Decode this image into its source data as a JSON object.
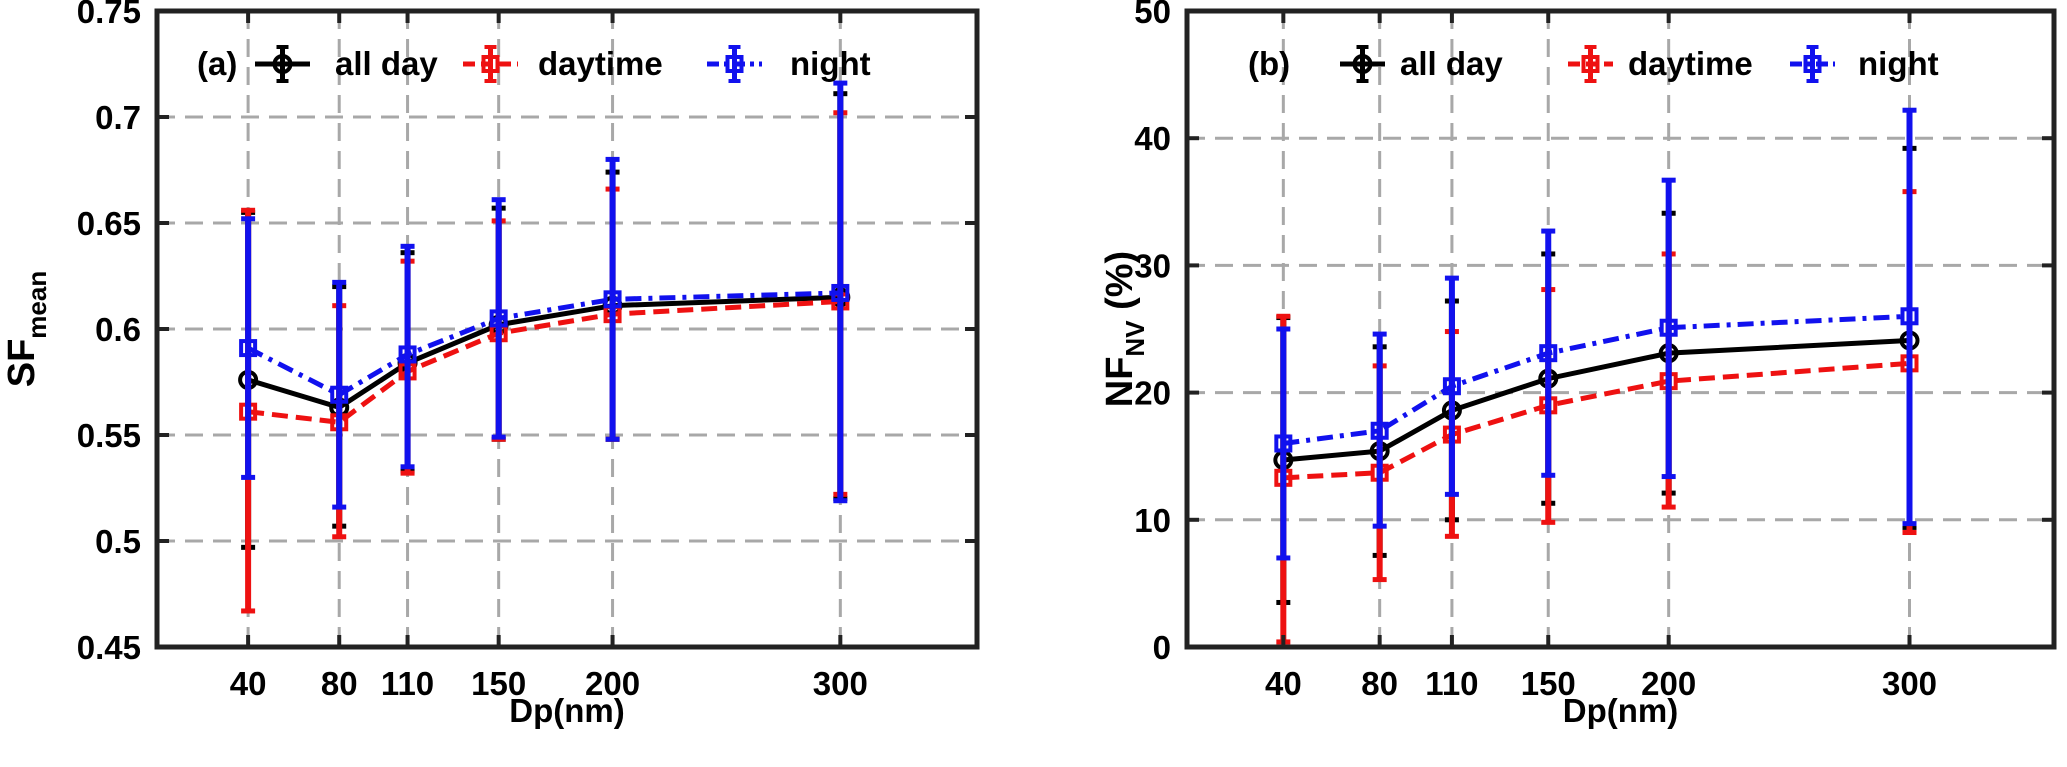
{
  "chart_data": [
    {
      "type": "line",
      "panel_label": "(a)",
      "title": "",
      "xlabel": "Dp(nm)",
      "ylabel_main": "SF",
      "ylabel_sub": "mean",
      "x_ticks": [
        40,
        80,
        110,
        150,
        200,
        300
      ],
      "x_tick_labels": [
        "40",
        "80",
        "110",
        "150",
        "200",
        "300"
      ],
      "xlim": [
        0,
        360
      ],
      "ylim": [
        0.45,
        0.75
      ],
      "y_ticks": [
        0.45,
        0.5,
        0.55,
        0.6,
        0.65,
        0.7,
        0.75
      ],
      "y_tick_labels": [
        "0.45",
        "0.5",
        "0.55",
        "0.6",
        "0.65",
        "0.7",
        "0.75"
      ],
      "grid": true,
      "legend_position": "top",
      "x": [
        40,
        80,
        110,
        150,
        200,
        300
      ],
      "series": [
        {
          "name": "all day",
          "color": "#000000",
          "dash": "solid",
          "marker": "circle",
          "values": [
            0.576,
            0.563,
            0.584,
            0.602,
            0.611,
            0.615
          ],
          "err_low": [
            0.497,
            0.507,
            0.533,
            0.548,
            0.548,
            0.52
          ],
          "err_high": [
            0.655,
            0.62,
            0.636,
            0.657,
            0.674,
            0.711
          ]
        },
        {
          "name": "daytime",
          "color": "#ee1111",
          "dash": "dash",
          "marker": "square",
          "values": [
            0.561,
            0.556,
            0.58,
            0.598,
            0.607,
            0.613
          ],
          "err_low": [
            0.467,
            0.502,
            0.532,
            0.548,
            0.548,
            0.522
          ],
          "err_high": [
            0.656,
            0.611,
            0.632,
            0.651,
            0.666,
            0.702
          ]
        },
        {
          "name": "night",
          "color": "#1111ee",
          "dash": "dashdot",
          "marker": "square",
          "values": [
            0.591,
            0.569,
            0.588,
            0.605,
            0.614,
            0.617
          ],
          "err_low": [
            0.53,
            0.516,
            0.535,
            0.549,
            0.548,
            0.519
          ],
          "err_high": [
            0.652,
            0.622,
            0.639,
            0.661,
            0.68,
            0.716
          ]
        }
      ]
    },
    {
      "type": "line",
      "panel_label": "(b)",
      "title": "",
      "xlabel": "Dp(nm)",
      "ylabel_main": "NF",
      "ylabel_sub": "NV",
      "ylabel_suffix": " (%)",
      "x_ticks": [
        40,
        80,
        110,
        150,
        200,
        300
      ],
      "x_tick_labels": [
        "40",
        "80",
        "110",
        "150",
        "200",
        "300"
      ],
      "xlim": [
        0,
        360
      ],
      "ylim": [
        0,
        50
      ],
      "y_ticks": [
        0,
        10,
        20,
        30,
        40,
        50
      ],
      "y_tick_labels": [
        "0",
        "10",
        "20",
        "30",
        "40",
        "50"
      ],
      "grid": true,
      "legend_position": "top",
      "x": [
        40,
        80,
        110,
        150,
        200,
        300
      ],
      "series": [
        {
          "name": "all day",
          "color": "#000000",
          "dash": "solid",
          "marker": "circle",
          "values": [
            14.7,
            15.4,
            18.6,
            21.1,
            23.1,
            24.1
          ],
          "err_low": [
            3.5,
            7.2,
            10.0,
            11.3,
            12.1,
            9.4
          ],
          "err_high": [
            25.9,
            23.6,
            27.2,
            30.9,
            34.1,
            39.2
          ]
        },
        {
          "name": "daytime",
          "color": "#ee1111",
          "dash": "dash",
          "marker": "square",
          "values": [
            13.3,
            13.7,
            16.7,
            19.0,
            20.9,
            22.3
          ],
          "err_low": [
            0.4,
            5.3,
            8.7,
            9.8,
            11.0,
            9.0
          ],
          "err_high": [
            26.0,
            22.1,
            24.8,
            28.1,
            30.9,
            35.8
          ]
        },
        {
          "name": "night",
          "color": "#1111ee",
          "dash": "dashdot",
          "marker": "square",
          "values": [
            16.0,
            17.0,
            20.5,
            23.1,
            25.1,
            26.0
          ],
          "err_low": [
            7.0,
            9.5,
            12.0,
            13.5,
            13.4,
            9.7
          ],
          "err_high": [
            25.0,
            24.6,
            29.0,
            32.7,
            36.7,
            42.2
          ]
        }
      ]
    }
  ]
}
